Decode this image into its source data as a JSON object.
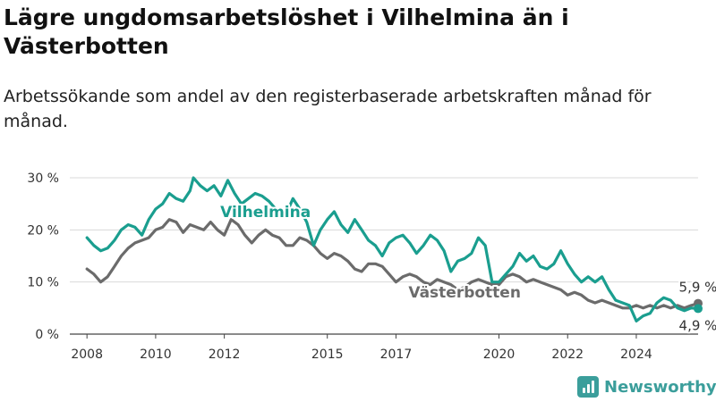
{
  "header": {
    "title": "Lägre ungdomsarbetslöshet i Vilhelmina än i Västerbotten",
    "subtitle": "Arbetssökande som andel av den registerbaserade arbetskraften månad för månad."
  },
  "brand": {
    "name": "Newsworthy",
    "icon": "newsworthy-logo-icon",
    "color": "#3b9e9b"
  },
  "chart_data": {
    "type": "line",
    "ylim": [
      0,
      30
    ],
    "y_ticks": [
      0,
      10,
      20,
      30
    ],
    "y_tick_labels": [
      "0 %",
      "10 %",
      "20 %",
      "30 %"
    ],
    "x_range": [
      2007.5,
      2025.8
    ],
    "x_ticks": [
      2008,
      2010,
      2012,
      2015,
      2017,
      2020,
      2022,
      2024
    ],
    "x_tick_labels": [
      "2008",
      "2010",
      "2012",
      "2015",
      "2017",
      "2020",
      "2022",
      "2024"
    ],
    "grid": true,
    "series": [
      {
        "name": "Vilhelmina",
        "color": "#1a9e8f",
        "end_value_label": "4,9 %",
        "points": [
          [
            2008.0,
            18.5
          ],
          [
            2008.2,
            17.0
          ],
          [
            2008.4,
            16.0
          ],
          [
            2008.6,
            16.5
          ],
          [
            2008.8,
            18.0
          ],
          [
            2009.0,
            20.0
          ],
          [
            2009.2,
            21.0
          ],
          [
            2009.4,
            20.5
          ],
          [
            2009.6,
            19.0
          ],
          [
            2009.8,
            22.0
          ],
          [
            2010.0,
            24.0
          ],
          [
            2010.2,
            25.0
          ],
          [
            2010.4,
            27.0
          ],
          [
            2010.6,
            26.0
          ],
          [
            2010.8,
            25.5
          ],
          [
            2011.0,
            27.5
          ],
          [
            2011.1,
            30.0
          ],
          [
            2011.3,
            28.5
          ],
          [
            2011.5,
            27.5
          ],
          [
            2011.7,
            28.5
          ],
          [
            2011.9,
            26.5
          ],
          [
            2012.0,
            28.0
          ],
          [
            2012.1,
            29.5
          ],
          [
            2012.3,
            27.0
          ],
          [
            2012.5,
            25.0
          ],
          [
            2012.7,
            26.0
          ],
          [
            2012.9,
            27.0
          ],
          [
            2013.1,
            26.5
          ],
          [
            2013.3,
            25.5
          ],
          [
            2013.5,
            24.0
          ],
          [
            2013.7,
            23.5
          ],
          [
            2013.9,
            24.5
          ],
          [
            2014.0,
            26.0
          ],
          [
            2014.2,
            24.0
          ],
          [
            2014.4,
            21.5
          ],
          [
            2014.6,
            17.0
          ],
          [
            2014.8,
            20.0
          ],
          [
            2015.0,
            22.0
          ],
          [
            2015.2,
            23.5
          ],
          [
            2015.4,
            21.0
          ],
          [
            2015.6,
            19.5
          ],
          [
            2015.8,
            22.0
          ],
          [
            2016.0,
            20.0
          ],
          [
            2016.2,
            18.0
          ],
          [
            2016.4,
            17.0
          ],
          [
            2016.6,
            15.0
          ],
          [
            2016.8,
            17.5
          ],
          [
            2017.0,
            18.5
          ],
          [
            2017.2,
            19.0
          ],
          [
            2017.4,
            17.5
          ],
          [
            2017.6,
            15.5
          ],
          [
            2017.8,
            17.0
          ],
          [
            2018.0,
            19.0
          ],
          [
            2018.2,
            18.0
          ],
          [
            2018.4,
            16.0
          ],
          [
            2018.6,
            12.0
          ],
          [
            2018.8,
            14.0
          ],
          [
            2019.0,
            14.5
          ],
          [
            2019.2,
            15.5
          ],
          [
            2019.4,
            18.5
          ],
          [
            2019.6,
            17.0
          ],
          [
            2019.8,
            10.0
          ],
          [
            2020.0,
            10.0
          ],
          [
            2020.2,
            11.5
          ],
          [
            2020.4,
            13.0
          ],
          [
            2020.6,
            15.5
          ],
          [
            2020.8,
            14.0
          ],
          [
            2021.0,
            15.0
          ],
          [
            2021.2,
            13.0
          ],
          [
            2021.4,
            12.5
          ],
          [
            2021.6,
            13.5
          ],
          [
            2021.8,
            16.0
          ],
          [
            2022.0,
            13.5
          ],
          [
            2022.2,
            11.5
          ],
          [
            2022.4,
            10.0
          ],
          [
            2022.6,
            11.0
          ],
          [
            2022.8,
            10.0
          ],
          [
            2023.0,
            11.0
          ],
          [
            2023.2,
            8.5
          ],
          [
            2023.4,
            6.5
          ],
          [
            2023.6,
            6.0
          ],
          [
            2023.8,
            5.5
          ],
          [
            2024.0,
            2.5
          ],
          [
            2024.2,
            3.5
          ],
          [
            2024.4,
            4.0
          ],
          [
            2024.6,
            6.0
          ],
          [
            2024.8,
            7.0
          ],
          [
            2025.0,
            6.5
          ],
          [
            2025.2,
            5.0
          ],
          [
            2025.4,
            4.5
          ],
          [
            2025.6,
            5.0
          ],
          [
            2025.8,
            4.9
          ]
        ]
      },
      {
        "name": "Västerbotten",
        "color": "#6b6b6b",
        "end_value_label": "5,9 %",
        "points": [
          [
            2008.0,
            12.5
          ],
          [
            2008.2,
            11.5
          ],
          [
            2008.4,
            10.0
          ],
          [
            2008.6,
            11.0
          ],
          [
            2008.8,
            13.0
          ],
          [
            2009.0,
            15.0
          ],
          [
            2009.2,
            16.5
          ],
          [
            2009.4,
            17.5
          ],
          [
            2009.6,
            18.0
          ],
          [
            2009.8,
            18.5
          ],
          [
            2010.0,
            20.0
          ],
          [
            2010.2,
            20.5
          ],
          [
            2010.4,
            22.0
          ],
          [
            2010.6,
            21.5
          ],
          [
            2010.8,
            19.5
          ],
          [
            2011.0,
            21.0
          ],
          [
            2011.2,
            20.5
          ],
          [
            2011.4,
            20.0
          ],
          [
            2011.6,
            21.5
          ],
          [
            2011.8,
            20.0
          ],
          [
            2012.0,
            19.0
          ],
          [
            2012.2,
            22.0
          ],
          [
            2012.4,
            21.0
          ],
          [
            2012.6,
            19.0
          ],
          [
            2012.8,
            17.5
          ],
          [
            2013.0,
            19.0
          ],
          [
            2013.2,
            20.0
          ],
          [
            2013.4,
            19.0
          ],
          [
            2013.6,
            18.5
          ],
          [
            2013.8,
            17.0
          ],
          [
            2014.0,
            17.0
          ],
          [
            2014.2,
            18.5
          ],
          [
            2014.4,
            18.0
          ],
          [
            2014.6,
            17.0
          ],
          [
            2014.8,
            15.5
          ],
          [
            2015.0,
            14.5
          ],
          [
            2015.2,
            15.5
          ],
          [
            2015.4,
            15.0
          ],
          [
            2015.6,
            14.0
          ],
          [
            2015.8,
            12.5
          ],
          [
            2016.0,
            12.0
          ],
          [
            2016.2,
            13.5
          ],
          [
            2016.4,
            13.5
          ],
          [
            2016.6,
            13.0
          ],
          [
            2016.8,
            11.5
          ],
          [
            2017.0,
            10.0
          ],
          [
            2017.2,
            11.0
          ],
          [
            2017.4,
            11.5
          ],
          [
            2017.6,
            11.0
          ],
          [
            2017.8,
            10.0
          ],
          [
            2018.0,
            9.5
          ],
          [
            2018.2,
            10.5
          ],
          [
            2018.4,
            10.0
          ],
          [
            2018.6,
            9.5
          ],
          [
            2018.8,
            8.5
          ],
          [
            2019.0,
            9.0
          ],
          [
            2019.2,
            10.0
          ],
          [
            2019.4,
            10.5
          ],
          [
            2019.6,
            10.0
          ],
          [
            2019.8,
            9.5
          ],
          [
            2020.0,
            9.5
          ],
          [
            2020.2,
            11.0
          ],
          [
            2020.4,
            11.5
          ],
          [
            2020.6,
            11.0
          ],
          [
            2020.8,
            10.0
          ],
          [
            2021.0,
            10.5
          ],
          [
            2021.2,
            10.0
          ],
          [
            2021.4,
            9.5
          ],
          [
            2021.6,
            9.0
          ],
          [
            2021.8,
            8.5
          ],
          [
            2022.0,
            7.5
          ],
          [
            2022.2,
            8.0
          ],
          [
            2022.4,
            7.5
          ],
          [
            2022.6,
            6.5
          ],
          [
            2022.8,
            6.0
          ],
          [
            2023.0,
            6.5
          ],
          [
            2023.2,
            6.0
          ],
          [
            2023.4,
            5.5
          ],
          [
            2023.6,
            5.0
          ],
          [
            2023.8,
            5.0
          ],
          [
            2024.0,
            5.5
          ],
          [
            2024.2,
            5.0
          ],
          [
            2024.4,
            5.5
          ],
          [
            2024.6,
            5.0
          ],
          [
            2024.8,
            5.5
          ],
          [
            2025.0,
            5.0
          ],
          [
            2025.2,
            5.5
          ],
          [
            2025.4,
            5.0
          ],
          [
            2025.6,
            5.5
          ],
          [
            2025.8,
            5.9
          ]
        ]
      }
    ]
  }
}
